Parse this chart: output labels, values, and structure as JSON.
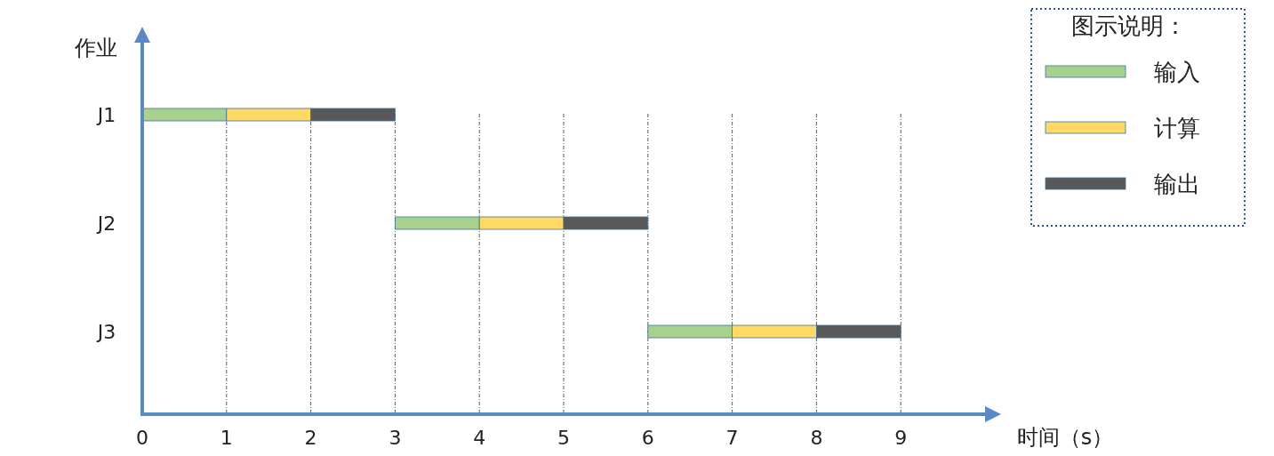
{
  "chart_data": {
    "type": "bar",
    "orientation": "horizontal",
    "categories": [
      "J1",
      "J2",
      "J3"
    ],
    "xlabel": "时间（s）",
    "ylabel": "作业",
    "legend_title": "图示说明：",
    "legend": "top right",
    "grid": "x",
    "xlim": [
      0,
      10
    ],
    "xticks": [
      0,
      1,
      2,
      3,
      4,
      5,
      6,
      7,
      8,
      9
    ],
    "series": [
      {
        "name": "输入",
        "color": "#a9d18e",
        "base": [
          0,
          3,
          6
        ],
        "values": [
          1,
          1,
          1
        ]
      },
      {
        "name": "计算",
        "color": "#ffd966",
        "base": [
          1,
          4,
          7
        ],
        "values": [
          1,
          1,
          1
        ]
      },
      {
        "name": "输出",
        "color": "#595959",
        "base": [
          2,
          5,
          8
        ],
        "values": [
          1,
          1,
          1
        ]
      }
    ]
  }
}
